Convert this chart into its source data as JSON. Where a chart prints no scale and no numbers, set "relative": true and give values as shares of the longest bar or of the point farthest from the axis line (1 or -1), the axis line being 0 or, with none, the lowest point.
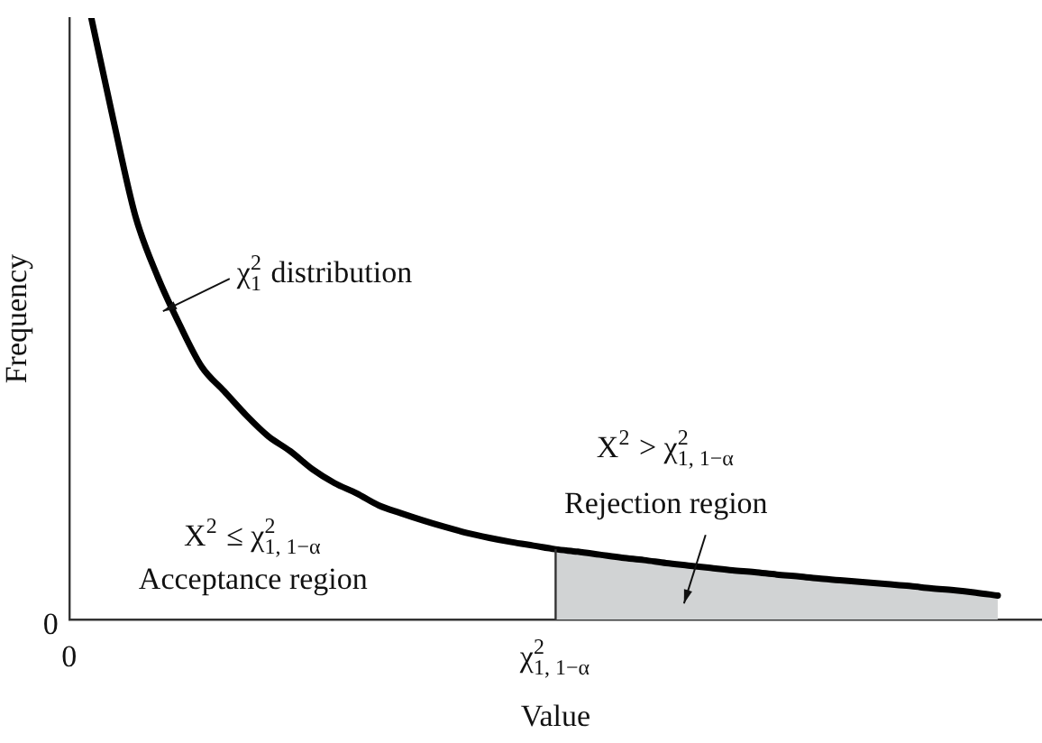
{
  "chart_data": {
    "type": "line",
    "relative": true,
    "xlabel": "Value",
    "ylabel": "Frequency",
    "categories": [
      "0",
      null,
      null,
      null,
      null,
      null,
      null,
      null,
      null,
      null,
      null,
      null,
      null,
      null,
      null,
      null,
      null,
      null,
      null,
      null,
      null,
      null,
      "χ$^{2}$$_{1, 1−α}$",
      null,
      null,
      null,
      null,
      null,
      null,
      null,
      null,
      null,
      null,
      null,
      null,
      null,
      null,
      null,
      null,
      null,
      null,
      null,
      null,
      null,
      null
    ],
    "series": [
      {
        "color": "#000000",
        "values": [
          null,
          1,
          0.83,
          0.67,
          0.57,
          0.49,
          0.42,
          0.38,
          0.34,
          0.305,
          0.28,
          0.25,
          0.227,
          0.21,
          0.19,
          0.177,
          0.165,
          0.154,
          0.144,
          0.136,
          0.129,
          0.123,
          0.117,
          0.113,
          0.108,
          0.103,
          0.099,
          0.094,
          0.09,
          0.086,
          0.082,
          0.079,
          0.075,
          0.072,
          0.068,
          0.065,
          0.062,
          0.059,
          0.056,
          0.052,
          0.049,
          0.045,
          0.04,
          null,
          null
        ]
      },
      {
        "type": "area",
        "color": "#d1d3d4",
        "values": [
          null,
          null,
          null,
          null,
          null,
          null,
          null,
          null,
          null,
          null,
          null,
          null,
          null,
          null,
          null,
          null,
          null,
          null,
          null,
          null,
          null,
          null,
          0.117,
          0.113,
          0.108,
          0.103,
          0.099,
          0.094,
          0.09,
          0.086,
          0.082,
          0.079,
          0.075,
          0.072,
          0.068,
          0.065,
          0.062,
          0.059,
          0.056,
          0.052,
          0.049,
          0.045,
          0.04,
          null,
          null
        ]
      }
    ],
    "annotations": [
      "χ$^{2}$$_{1}$ distribution",
      "X$^{2}$ > χ$^{2}$$_{1, 1−α}$\nRejection region",
      "X$^{2}$ ≤ χ$^{2}$$_{1, 1−α}$\nAcceptance region",
      "0"
    ]
  }
}
